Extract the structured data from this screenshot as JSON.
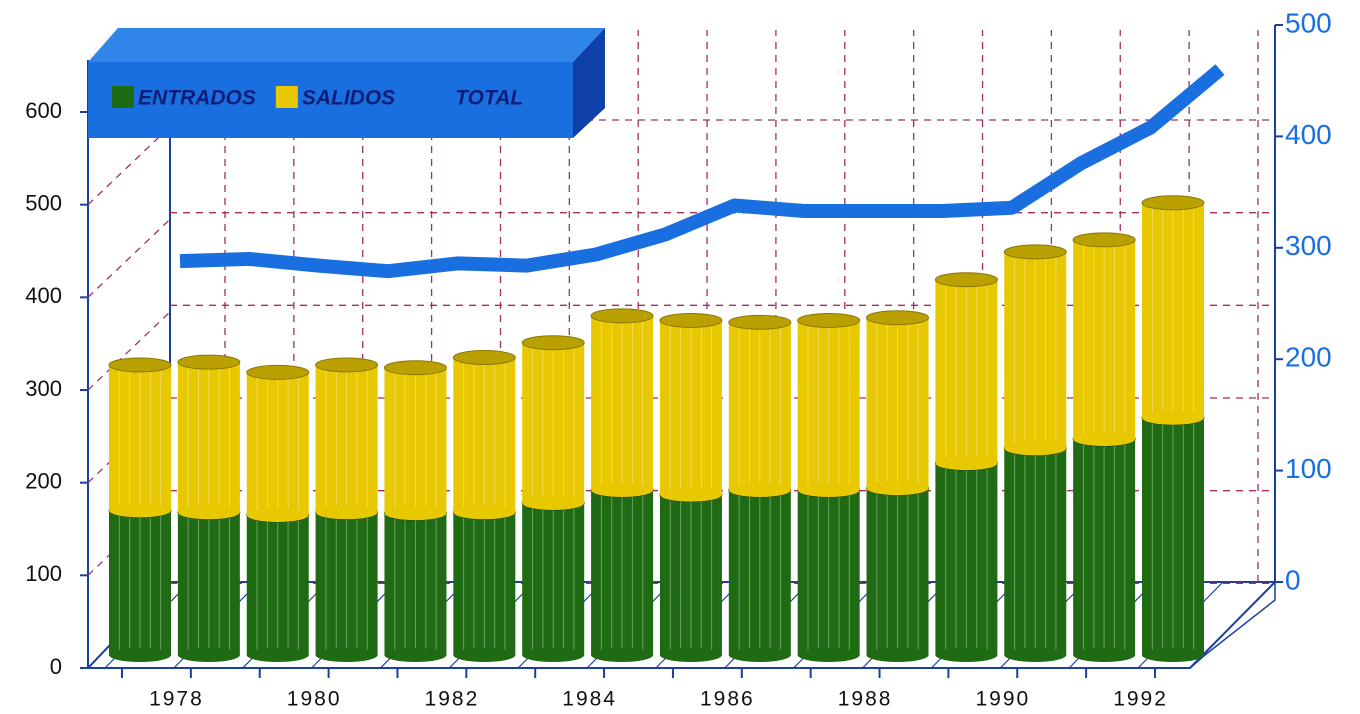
{
  "chart_data": {
    "type": "bar",
    "stacked": true,
    "categories": [
      null,
      "1978",
      null,
      "1980",
      null,
      "1982",
      null,
      "1984",
      null,
      "1986",
      null,
      "1988",
      null,
      "1990",
      null,
      "1992"
    ],
    "series": [
      {
        "name": "ENTRADOS",
        "color": "#1f6b14",
        "values": [
          156,
          154,
          151,
          154,
          153,
          154,
          164,
          178,
          173,
          178,
          178,
          180,
          207,
          223,
          233,
          256
        ]
      },
      {
        "name": "SALIDOS",
        "color": "#e8c800",
        "values": [
          157,
          162,
          154,
          159,
          157,
          167,
          173,
          188,
          188,
          181,
          183,
          184,
          198,
          212,
          215,
          232
        ]
      },
      {
        "name": "TOTAL",
        "color": "#1a6fe0",
        "type": "line",
        "axis": "y2",
        "values": [
          288,
          290,
          284,
          279,
          286,
          284,
          294,
          312,
          338,
          333,
          333,
          333,
          336,
          376,
          408,
          460
        ]
      }
    ],
    "ylim": [
      0,
      650
    ],
    "yticks": [
      0,
      100,
      200,
      300,
      400,
      500,
      600
    ],
    "y2lim": [
      0,
      500
    ],
    "y2ticks": [
      0,
      100,
      200,
      300,
      400,
      500
    ],
    "grid": true,
    "legend": "top-left"
  }
}
